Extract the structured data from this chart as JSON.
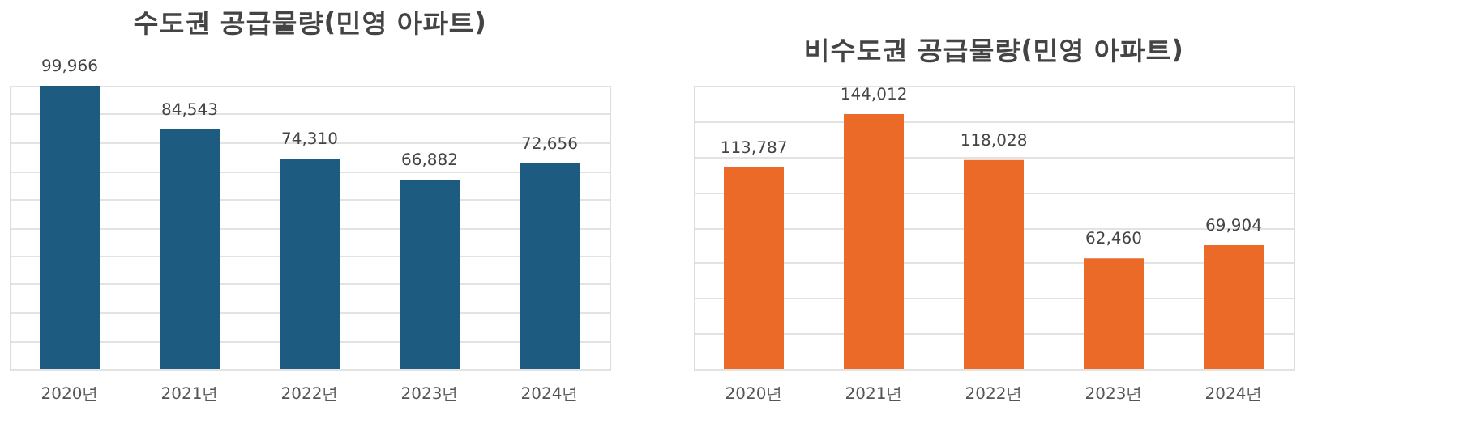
{
  "chart_data": [
    {
      "type": "bar",
      "title": "수도권 공급물량(민영 아파트)",
      "categories": [
        "2020년",
        "2021년",
        "2022년",
        "2023년",
        "2024년"
      ],
      "values": [
        99966,
        84543,
        74310,
        66882,
        72656
      ],
      "value_labels": [
        "99,966",
        "84,543",
        "74,310",
        "66,882",
        "72,656"
      ],
      "color": "#1d5b80",
      "grid": "y",
      "tick_labels": "x"
    },
    {
      "type": "bar",
      "title": "비수도권 공급물량(민영 아파트)",
      "categories": [
        "2020년",
        "2021년",
        "2022년",
        "2023년",
        "2024년"
      ],
      "values": [
        113787,
        144012,
        118028,
        62460,
        69904
      ],
      "value_labels": [
        "113,787",
        "144,012",
        "118,028",
        "62,460",
        "69,904"
      ],
      "color": "#eb6a28",
      "grid": "y",
      "tick_labels": "x"
    }
  ]
}
